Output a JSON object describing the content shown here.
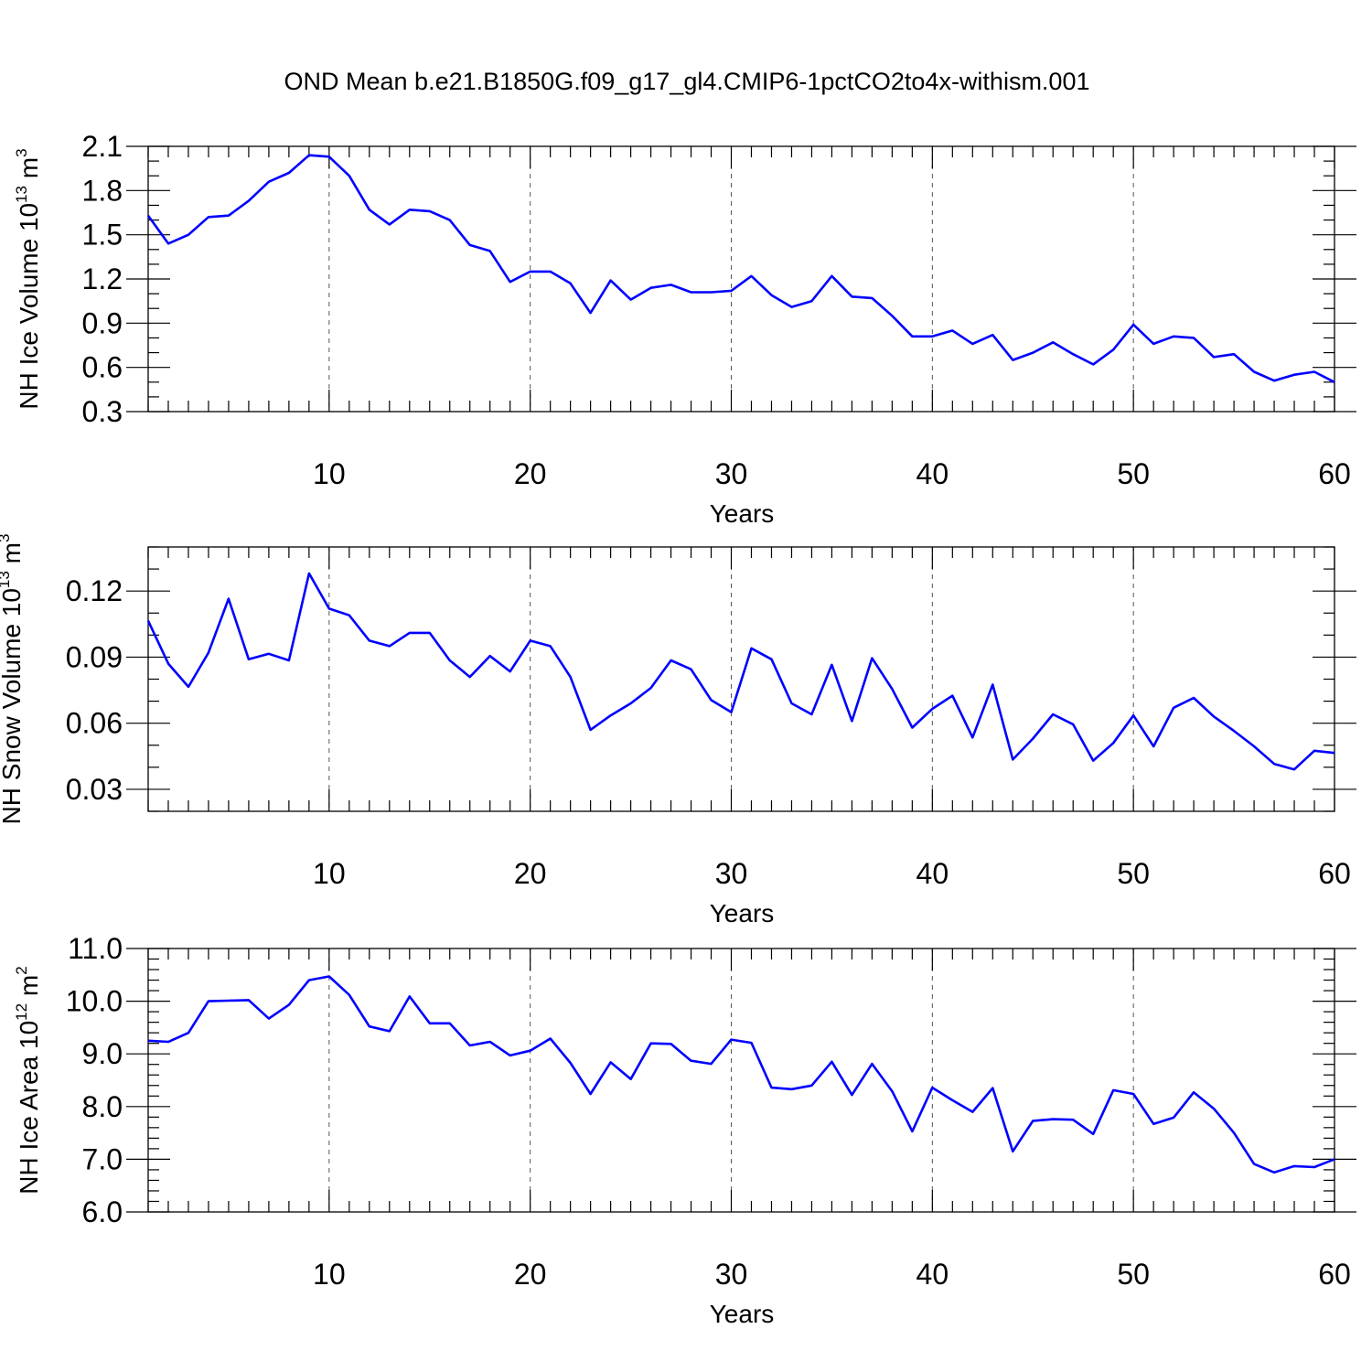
{
  "title": "OND Mean b.e21.B1850G.f09_g17_gl4.CMIP6-1pctCO2to4x-withism.001",
  "colors": {
    "series": "#0000ff",
    "grid": "#555555",
    "axis": "#000000"
  },
  "chart_data": [
    {
      "type": "line",
      "name": "ice-volume",
      "ylabel": {
        "main": "NH Ice Volume 10",
        "sup1": "13",
        "mid": " m",
        "sup2": "3"
      },
      "xlabel": "Years",
      "xlim": [
        1,
        60
      ],
      "ylim": [
        0.3,
        2.1
      ],
      "xticks": [
        10,
        20,
        30,
        40,
        50,
        60
      ],
      "yticks": [
        "0.3",
        "0.6",
        "0.9",
        "1.2",
        "1.5",
        "1.8",
        "2.1"
      ],
      "yminor": 0.1,
      "grid": "vertical dashed at major x ticks",
      "x": [
        1,
        2,
        3,
        4,
        5,
        6,
        7,
        8,
        9,
        10,
        11,
        12,
        13,
        14,
        15,
        16,
        17,
        18,
        19,
        20,
        21,
        22,
        23,
        24,
        25,
        26,
        27,
        28,
        29,
        30,
        31,
        32,
        33,
        34,
        35,
        36,
        37,
        38,
        39,
        40,
        41,
        42,
        43,
        44,
        45,
        46,
        47,
        48,
        49,
        50,
        51,
        52,
        53,
        54,
        55,
        56,
        57,
        58,
        59,
        60
      ],
      "values": [
        1.63,
        1.44,
        1.5,
        1.62,
        1.63,
        1.73,
        1.86,
        1.92,
        2.04,
        2.03,
        1.9,
        1.67,
        1.57,
        1.67,
        1.66,
        1.6,
        1.43,
        1.39,
        1.18,
        1.25,
        1.25,
        1.17,
        0.97,
        1.19,
        1.06,
        1.14,
        1.16,
        1.11,
        1.11,
        1.12,
        1.22,
        1.09,
        1.01,
        1.05,
        1.22,
        1.08,
        1.07,
        0.95,
        0.81,
        0.81,
        0.85,
        0.76,
        0.82,
        0.65,
        0.7,
        0.77,
        0.69,
        0.62,
        0.72,
        0.89,
        0.76,
        0.81,
        0.8,
        0.67,
        0.69,
        0.57,
        0.51,
        0.55,
        0.57,
        0.5
      ]
    },
    {
      "type": "line",
      "name": "snow-volume",
      "ylabel": {
        "main": "NH Snow Volume 10",
        "sup1": "13",
        "mid": " m",
        "sup2": "3"
      },
      "xlabel": "Years",
      "xlim": [
        1,
        60
      ],
      "ylim": [
        0.02,
        0.14
      ],
      "xticks": [
        10,
        20,
        30,
        40,
        50,
        60
      ],
      "yticks": [
        "0.03",
        "0.06",
        "0.09",
        "0.12"
      ],
      "yminor": 0.01,
      "grid": "vertical dashed at major x ticks",
      "x": [
        1,
        2,
        3,
        4,
        5,
        6,
        7,
        8,
        9,
        10,
        11,
        12,
        13,
        14,
        15,
        16,
        17,
        18,
        19,
        20,
        21,
        22,
        23,
        24,
        25,
        26,
        27,
        28,
        29,
        30,
        31,
        32,
        33,
        34,
        35,
        36,
        37,
        38,
        39,
        40,
        41,
        42,
        43,
        44,
        45,
        46,
        47,
        48,
        49,
        50,
        51,
        52,
        53,
        54,
        55,
        56,
        57,
        58,
        59,
        60
      ],
      "values": [
        0.1065,
        0.087,
        0.0765,
        0.092,
        0.1165,
        0.089,
        0.0915,
        0.0885,
        0.128,
        0.112,
        0.109,
        0.0975,
        0.095,
        0.101,
        0.101,
        0.0885,
        0.081,
        0.0905,
        0.0835,
        0.0975,
        0.095,
        0.081,
        0.057,
        0.0635,
        0.069,
        0.076,
        0.0885,
        0.0845,
        0.0705,
        0.065,
        0.094,
        0.089,
        0.069,
        0.064,
        0.0865,
        0.061,
        0.0895,
        0.0755,
        0.058,
        0.0665,
        0.0725,
        0.0535,
        0.0775,
        0.0435,
        0.053,
        0.064,
        0.0595,
        0.043,
        0.051,
        0.0635,
        0.0495,
        0.067,
        0.0715,
        0.063,
        0.0565,
        0.0495,
        0.0415,
        0.039,
        0.0475,
        0.0465
      ]
    },
    {
      "type": "line",
      "name": "ice-area",
      "ylabel": {
        "main": "NH Ice Area 10",
        "sup1": "12",
        "mid": " m",
        "sup2": "2"
      },
      "xlabel": "Years",
      "xlim": [
        1,
        60
      ],
      "ylim": [
        6.0,
        11.0
      ],
      "xticks": [
        10,
        20,
        30,
        40,
        50,
        60
      ],
      "yticks": [
        "6.0",
        "7.0",
        "8.0",
        "9.0",
        "10.0",
        "11.0"
      ],
      "yminor": 0.2,
      "grid": "vertical dashed at major x ticks",
      "x": [
        1,
        2,
        3,
        4,
        5,
        6,
        7,
        8,
        9,
        10,
        11,
        12,
        13,
        14,
        15,
        16,
        17,
        18,
        19,
        20,
        21,
        22,
        23,
        24,
        25,
        26,
        27,
        28,
        29,
        30,
        31,
        32,
        33,
        34,
        35,
        36,
        37,
        38,
        39,
        40,
        41,
        42,
        43,
        44,
        45,
        46,
        47,
        48,
        49,
        50,
        51,
        52,
        53,
        54,
        55,
        56,
        57,
        58,
        59,
        60
      ],
      "values": [
        9.25,
        9.23,
        9.4,
        10.0,
        10.01,
        10.02,
        9.67,
        9.93,
        10.4,
        10.47,
        10.12,
        9.52,
        9.43,
        10.09,
        9.58,
        9.58,
        9.16,
        9.23,
        8.97,
        9.06,
        9.29,
        8.83,
        8.24,
        8.84,
        8.52,
        9.2,
        9.19,
        8.87,
        8.81,
        9.27,
        9.21,
        8.36,
        8.33,
        8.4,
        8.85,
        8.22,
        8.81,
        8.29,
        7.53,
        8.36,
        8.12,
        7.9,
        8.35,
        7.15,
        7.73,
        7.76,
        7.75,
        7.48,
        8.31,
        8.24,
        7.67,
        7.79,
        8.27,
        7.96,
        7.5,
        6.91,
        6.75,
        6.87,
        6.85,
        7.0
      ]
    }
  ]
}
